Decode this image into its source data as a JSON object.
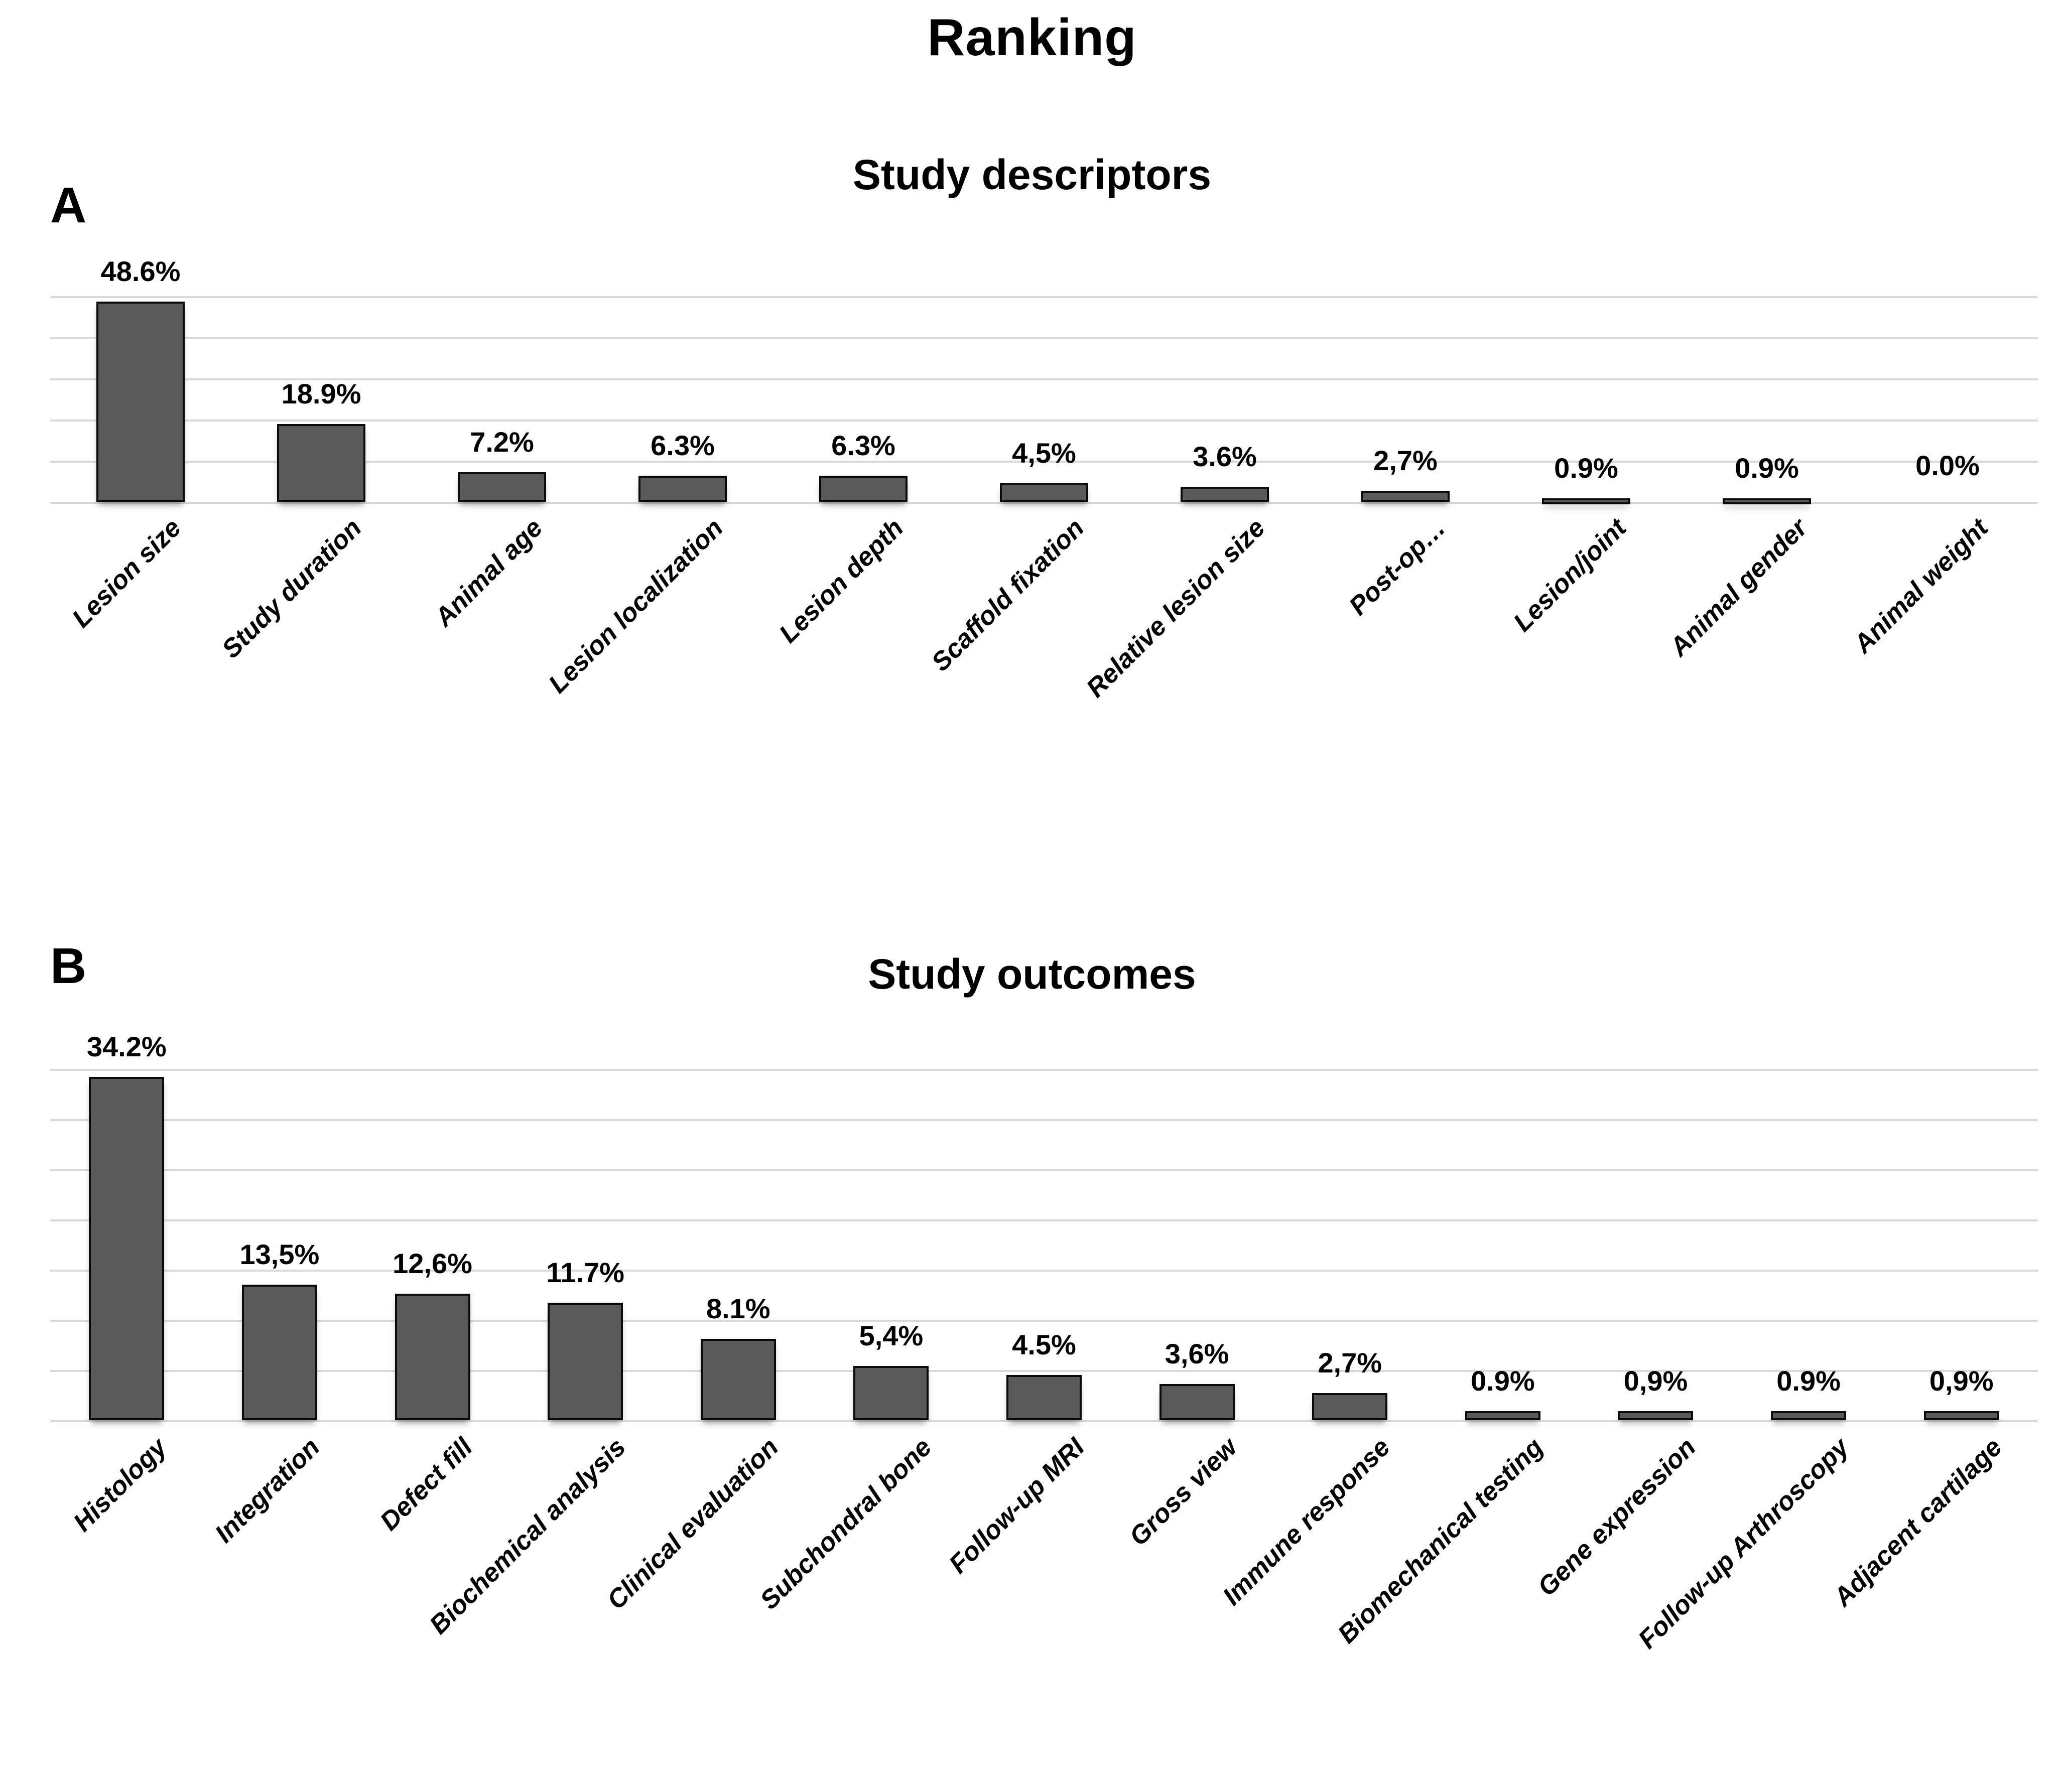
{
  "title": "Ranking",
  "colors": {
    "background": "#ffffff",
    "bar_fill": "#595959",
    "bar_border": "#0b0b0b",
    "gridline": "#d9d9d9",
    "text": "#000000"
  },
  "chart_data": [
    {
      "type": "bar",
      "panel_label": "A",
      "title": "Study descriptors",
      "categories": [
        "Lesion size",
        "Study duration",
        "Animal age",
        "Lesion localization",
        "Lesion depth",
        "Scaffold fixation",
        "Relative lesion size",
        "Post-op…",
        "Lesion/joint",
        "Animal gender",
        "Animal weight"
      ],
      "values": [
        48.6,
        18.9,
        7.2,
        6.3,
        6.3,
        4.5,
        3.6,
        2.7,
        0.9,
        0.9,
        0.0
      ],
      "value_labels": [
        "48.6%",
        "18.9%",
        "7.2%",
        "6.3%",
        "6.3%",
        "4,5%",
        "3.6%",
        "2,7%",
        "0.9%",
        "0.9%",
        "0.0%"
      ],
      "xlabel": "",
      "ylabel": "",
      "ylim": [
        0,
        50
      ],
      "gridline_step": 10,
      "grid": true,
      "legend": "none"
    },
    {
      "type": "bar",
      "panel_label": "B",
      "title": "Study outcomes",
      "categories": [
        "Histology",
        "Integration",
        "Defect fill",
        "Biochemical analysis",
        "Clinical evaluation",
        "Subchondral bone",
        "Follow-up MRI",
        "Gross view",
        "Immune response",
        "Biomechanical testing",
        "Gene expression",
        "Follow-up Arthroscopy",
        "Adjacent cartilage"
      ],
      "values": [
        34.2,
        13.5,
        12.6,
        11.7,
        8.1,
        5.4,
        4.5,
        3.6,
        2.7,
        0.9,
        0.9,
        0.9,
        0.9
      ],
      "value_labels": [
        "34.2%",
        "13,5%",
        "12,6%",
        "11.7%",
        "8.1%",
        "5,4%",
        "4.5%",
        "3,6%",
        "2,7%",
        "0.9%",
        "0,9%",
        "0.9%",
        "0,9%"
      ],
      "xlabel": "",
      "ylabel": "",
      "ylim": [
        0,
        35
      ],
      "gridline_step": 5,
      "grid": true,
      "legend": "none"
    }
  ]
}
